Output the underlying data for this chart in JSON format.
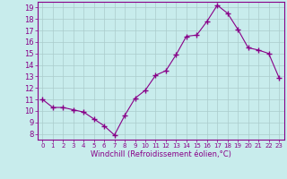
{
  "x": [
    0,
    1,
    2,
    3,
    4,
    5,
    6,
    7,
    8,
    9,
    10,
    11,
    12,
    13,
    14,
    15,
    16,
    17,
    18,
    19,
    20,
    21,
    22,
    23
  ],
  "y": [
    11,
    10.3,
    10.3,
    10.1,
    9.9,
    9.3,
    8.7,
    7.9,
    9.6,
    11.1,
    11.8,
    13.1,
    13.5,
    14.9,
    16.5,
    16.6,
    17.8,
    19.2,
    18.5,
    17.1,
    15.5,
    15.3,
    15.0,
    12.9
  ],
  "line_color": "#880088",
  "marker": "+",
  "marker_size": 4,
  "bg_color": "#c8ecec",
  "grid_color": "#aacccc",
  "xlabel": "Windchill (Refroidissement éolien,°C)",
  "xlim": [
    -0.5,
    23.5
  ],
  "ylim": [
    7.5,
    19.5
  ],
  "yticks": [
    8,
    9,
    10,
    11,
    12,
    13,
    14,
    15,
    16,
    17,
    18,
    19
  ],
  "xticks": [
    0,
    1,
    2,
    3,
    4,
    5,
    6,
    7,
    8,
    9,
    10,
    11,
    12,
    13,
    14,
    15,
    16,
    17,
    18,
    19,
    20,
    21,
    22,
    23
  ],
  "tick_color": "#880088",
  "label_color": "#880088",
  "spine_color": "#880088"
}
